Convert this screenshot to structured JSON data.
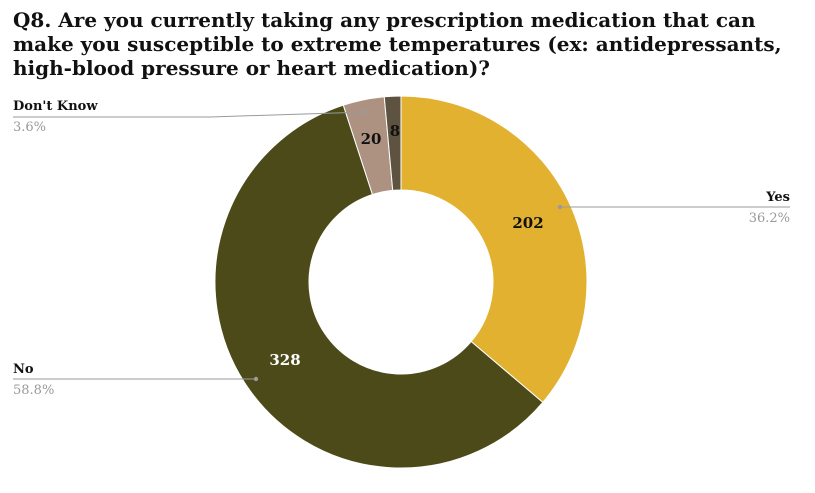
{
  "chart_data": {
    "type": "pie",
    "variant": "doughnut",
    "title": "Q8. Are you currently taking any prescription medication that can make you susceptible to extreme temperatures (ex: antidepressants, high-blood pressure or heart medication)?",
    "slices": [
      {
        "label": "Yes",
        "value": 202,
        "percent": "36.2%",
        "color": "#E3B130",
        "label_color": "#111111"
      },
      {
        "label": "No",
        "value": 328,
        "percent": "58.8%",
        "color": "#4B4A18",
        "label_color": "#ffffff"
      },
      {
        "label": "Don't Know",
        "value": 20,
        "percent": "3.6%",
        "color": "#AD9282",
        "label_color": "#111111"
      },
      {
        "label": "",
        "value": 8,
        "percent": "",
        "color": "#5E5240",
        "label_color": "#111111"
      }
    ]
  }
}
